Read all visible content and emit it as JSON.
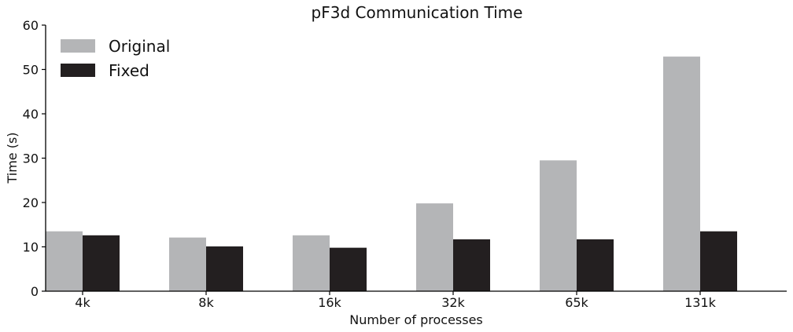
{
  "chart_data": {
    "type": "bar",
    "title": "pF3d Communication Time",
    "xlabel": "Number of processes",
    "ylabel": "Time (s)",
    "categories": [
      "4k",
      "8k",
      "16k",
      "32k",
      "65k",
      "131k"
    ],
    "series": [
      {
        "name": "Original",
        "color": "#b4b5b7",
        "values": [
          13.5,
          12.1,
          12.6,
          19.8,
          29.5,
          52.9
        ]
      },
      {
        "name": "Fixed",
        "color": "#231f20",
        "values": [
          12.6,
          10.1,
          9.8,
          11.7,
          11.7,
          13.5
        ]
      }
    ],
    "ylim": [
      0,
      60
    ],
    "yticks": [
      0,
      10,
      20,
      30,
      40,
      50,
      60
    ],
    "grid": false,
    "legend": "top-left"
  }
}
